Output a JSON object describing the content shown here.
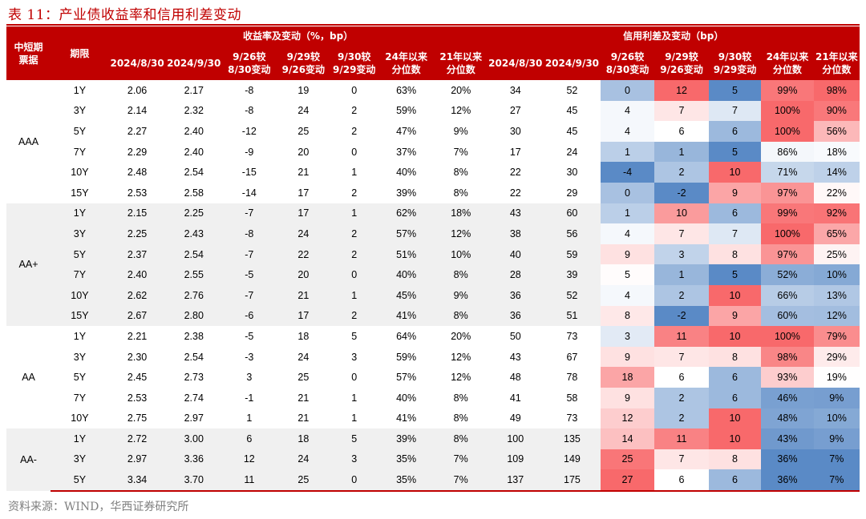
{
  "title": "表 11：产业债收益率和信用利差变动",
  "source": "资料来源：WIND，华西证券研究所",
  "header": {
    "group_col": "中短期\n票据",
    "term_col": "期限",
    "yield_group": "收益率及变动（%，bp）",
    "spread_group": "信用利差及变动（bp）",
    "sub_cols": [
      "2024/8/30",
      "2024/9/30",
      "9/26较\n8/30变动",
      "9/29较\n9/26变动",
      "9/30较\n9/29变动",
      "24年以来\n分位数",
      "21年以来\n分位数"
    ]
  },
  "colors": {
    "header_bg": "#c00000",
    "source_text": "#7f7f7f",
    "group_band": "#f0f0f0",
    "heat_high": "#f8696b",
    "heat_mid": "#ffffff",
    "heat_low": "#5a8ac6"
  },
  "groups": [
    {
      "rating": "AAA",
      "rows": [
        {
          "term": "1Y",
          "y0": "2.06",
          "y1": "2.17",
          "yc1": "-8",
          "yc2": "19",
          "yc3": "0",
          "yp24": "63%",
          "yp21": "20%",
          "s0": "34",
          "s1": "52",
          "sc1": "0",
          "sc2": "12",
          "sc3": "5",
          "sp24": "99%",
          "sp21": "98%"
        },
        {
          "term": "3Y",
          "y0": "2.14",
          "y1": "2.32",
          "yc1": "-8",
          "yc2": "24",
          "yc3": "2",
          "yp24": "59%",
          "yp21": "12%",
          "s0": "27",
          "s1": "45",
          "sc1": "4",
          "sc2": "7",
          "sc3": "7",
          "sp24": "100%",
          "sp21": "90%"
        },
        {
          "term": "5Y",
          "y0": "2.27",
          "y1": "2.40",
          "yc1": "-12",
          "yc2": "25",
          "yc3": "2",
          "yp24": "47%",
          "yp21": "9%",
          "s0": "30",
          "s1": "45",
          "sc1": "4",
          "sc2": "6",
          "sc3": "6",
          "sp24": "100%",
          "sp21": "56%"
        },
        {
          "term": "7Y",
          "y0": "2.29",
          "y1": "2.40",
          "yc1": "-9",
          "yc2": "20",
          "yc3": "0",
          "yp24": "37%",
          "yp21": "7%",
          "s0": "17",
          "s1": "24",
          "sc1": "1",
          "sc2": "1",
          "sc3": "5",
          "sp24": "86%",
          "sp21": "18%"
        },
        {
          "term": "10Y",
          "y0": "2.48",
          "y1": "2.54",
          "yc1": "-15",
          "yc2": "21",
          "yc3": "1",
          "yp24": "40%",
          "yp21": "8%",
          "s0": "22",
          "s1": "30",
          "sc1": "-4",
          "sc2": "2",
          "sc3": "10",
          "sp24": "71%",
          "sp21": "14%"
        },
        {
          "term": "15Y",
          "y0": "2.53",
          "y1": "2.58",
          "yc1": "-14",
          "yc2": "17",
          "yc3": "2",
          "yp24": "39%",
          "yp21": "8%",
          "s0": "22",
          "s1": "29",
          "sc1": "0",
          "sc2": "-2",
          "sc3": "9",
          "sp24": "97%",
          "sp21": "22%"
        }
      ]
    },
    {
      "rating": "AA+",
      "rows": [
        {
          "term": "1Y",
          "y0": "2.15",
          "y1": "2.25",
          "yc1": "-7",
          "yc2": "17",
          "yc3": "1",
          "yp24": "62%",
          "yp21": "18%",
          "s0": "43",
          "s1": "60",
          "sc1": "1",
          "sc2": "10",
          "sc3": "6",
          "sp24": "99%",
          "sp21": "92%"
        },
        {
          "term": "3Y",
          "y0": "2.25",
          "y1": "2.43",
          "yc1": "-8",
          "yc2": "24",
          "yc3": "2",
          "yp24": "57%",
          "yp21": "12%",
          "s0": "38",
          "s1": "56",
          "sc1": "4",
          "sc2": "7",
          "sc3": "7",
          "sp24": "100%",
          "sp21": "65%"
        },
        {
          "term": "5Y",
          "y0": "2.37",
          "y1": "2.54",
          "yc1": "-7",
          "yc2": "22",
          "yc3": "2",
          "yp24": "51%",
          "yp21": "10%",
          "s0": "40",
          "s1": "59",
          "sc1": "9",
          "sc2": "3",
          "sc3": "8",
          "sp24": "97%",
          "sp21": "25%"
        },
        {
          "term": "7Y",
          "y0": "2.40",
          "y1": "2.55",
          "yc1": "-5",
          "yc2": "20",
          "yc3": "0",
          "yp24": "40%",
          "yp21": "8%",
          "s0": "28",
          "s1": "39",
          "sc1": "5",
          "sc2": "1",
          "sc3": "5",
          "sp24": "52%",
          "sp21": "10%"
        },
        {
          "term": "10Y",
          "y0": "2.62",
          "y1": "2.76",
          "yc1": "-7",
          "yc2": "21",
          "yc3": "1",
          "yp24": "45%",
          "yp21": "9%",
          "s0": "36",
          "s1": "52",
          "sc1": "4",
          "sc2": "2",
          "sc3": "10",
          "sp24": "66%",
          "sp21": "13%"
        },
        {
          "term": "15Y",
          "y0": "2.67",
          "y1": "2.80",
          "yc1": "-6",
          "yc2": "17",
          "yc3": "2",
          "yp24": "41%",
          "yp21": "8%",
          "s0": "36",
          "s1": "51",
          "sc1": "8",
          "sc2": "-2",
          "sc3": "9",
          "sp24": "60%",
          "sp21": "12%"
        }
      ]
    },
    {
      "rating": "AA",
      "rows": [
        {
          "term": "1Y",
          "y0": "2.21",
          "y1": "2.38",
          "yc1": "-5",
          "yc2": "18",
          "yc3": "5",
          "yp24": "64%",
          "yp21": "20%",
          "s0": "50",
          "s1": "73",
          "sc1": "3",
          "sc2": "11",
          "sc3": "10",
          "sp24": "100%",
          "sp21": "79%"
        },
        {
          "term": "3Y",
          "y0": "2.30",
          "y1": "2.54",
          "yc1": "-3",
          "yc2": "24",
          "yc3": "3",
          "yp24": "59%",
          "yp21": "12%",
          "s0": "43",
          "s1": "67",
          "sc1": "9",
          "sc2": "7",
          "sc3": "8",
          "sp24": "98%",
          "sp21": "29%"
        },
        {
          "term": "5Y",
          "y0": "2.45",
          "y1": "2.73",
          "yc1": "3",
          "yc2": "25",
          "yc3": "0",
          "yp24": "57%",
          "yp21": "12%",
          "s0": "48",
          "s1": "78",
          "sc1": "18",
          "sc2": "6",
          "sc3": "6",
          "sp24": "93%",
          "sp21": "19%"
        },
        {
          "term": "7Y",
          "y0": "2.53",
          "y1": "2.74",
          "yc1": "-1",
          "yc2": "21",
          "yc3": "1",
          "yp24": "40%",
          "yp21": "8%",
          "s0": "41",
          "s1": "58",
          "sc1": "9",
          "sc2": "2",
          "sc3": "6",
          "sp24": "46%",
          "sp21": "9%"
        },
        {
          "term": "10Y",
          "y0": "2.75",
          "y1": "2.97",
          "yc1": "1",
          "yc2": "21",
          "yc3": "1",
          "yp24": "41%",
          "yp21": "8%",
          "s0": "49",
          "s1": "73",
          "sc1": "12",
          "sc2": "2",
          "sc3": "10",
          "sp24": "48%",
          "sp21": "10%"
        }
      ]
    },
    {
      "rating": "AA-",
      "rows": [
        {
          "term": "1Y",
          "y0": "2.72",
          "y1": "3.00",
          "yc1": "6",
          "yc2": "18",
          "yc3": "5",
          "yp24": "39%",
          "yp21": "8%",
          "s0": "100",
          "s1": "135",
          "sc1": "14",
          "sc2": "11",
          "sc3": "10",
          "sp24": "43%",
          "sp21": "9%"
        },
        {
          "term": "3Y",
          "y0": "2.97",
          "y1": "3.36",
          "yc1": "12",
          "yc2": "24",
          "yc3": "3",
          "yp24": "35%",
          "yp21": "7%",
          "s0": "109",
          "s1": "149",
          "sc1": "25",
          "sc2": "7",
          "sc3": "8",
          "sp24": "36%",
          "sp21": "7%"
        },
        {
          "term": "5Y",
          "y0": "3.34",
          "y1": "3.70",
          "yc1": "11",
          "yc2": "25",
          "yc3": "0",
          "yp24": "35%",
          "yp21": "7%",
          "s0": "137",
          "s1": "175",
          "sc1": "27",
          "sc2": "6",
          "sc3": "6",
          "sp24": "36%",
          "sp21": "7%"
        }
      ]
    }
  ]
}
